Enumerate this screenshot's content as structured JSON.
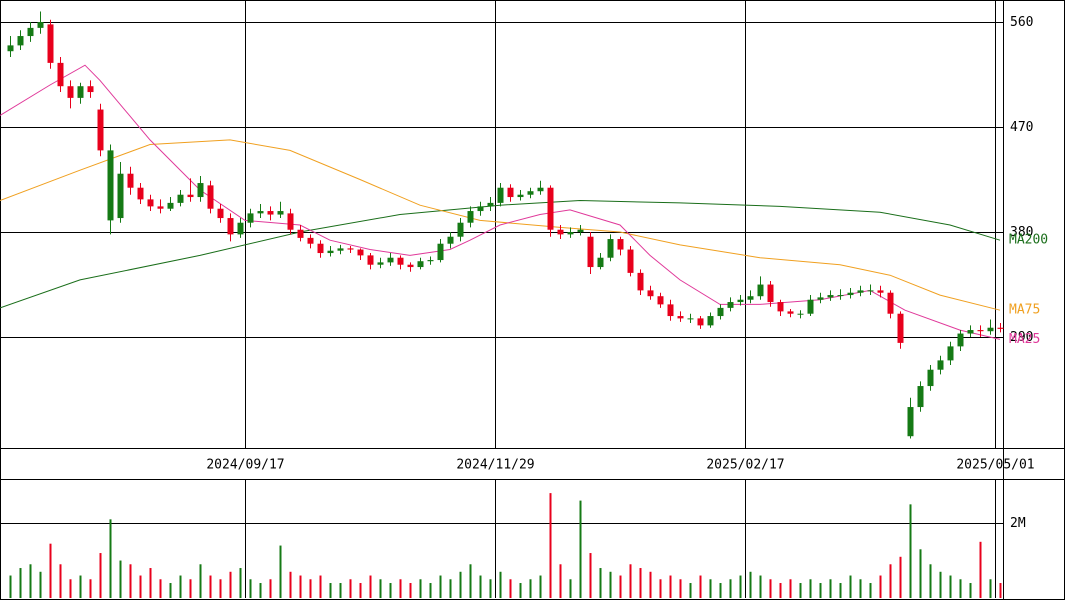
{
  "chart_data": {
    "type": "candlestick",
    "up_color": "#157a15",
    "down_color": "#e8001c",
    "xlim": [
      0,
      200.6
    ],
    "xticks": [
      {
        "value": 49,
        "label": "2024/09/17"
      },
      {
        "value": 99,
        "label": "2024/11/29"
      },
      {
        "value": 149,
        "label": "2025/02/17"
      },
      {
        "value": 199,
        "label": "2025/05/01"
      }
    ],
    "ylim": [
      194.9,
      578.9
    ],
    "yticks": [
      290,
      380,
      470,
      560
    ],
    "grid": true,
    "x": [
      2,
      4,
      6,
      8,
      10,
      12,
      14,
      16,
      18,
      20,
      22,
      24,
      26,
      28,
      30,
      32,
      34,
      36,
      38,
      40,
      42,
      44,
      46,
      48,
      50,
      52,
      54,
      56,
      58,
      60,
      62,
      64,
      66,
      68,
      70,
      72,
      74,
      76,
      78,
      80,
      82,
      84,
      86,
      88,
      90,
      92,
      94,
      96,
      98,
      100,
      102,
      104,
      106,
      108,
      110,
      112,
      114,
      116,
      118,
      120,
      122,
      124,
      126,
      128,
      130,
      132,
      134,
      136,
      138,
      140,
      142,
      144,
      146,
      148,
      150,
      152,
      154,
      156,
      158,
      160,
      162,
      164,
      166,
      168,
      170,
      172,
      174,
      176,
      178,
      180,
      182,
      184,
      186,
      188,
      190,
      192,
      194,
      196,
      198,
      200
    ],
    "ohlc": [
      [
        535,
        548,
        530,
        540
      ],
      [
        540,
        553,
        536,
        548
      ],
      [
        548,
        560,
        543,
        555
      ],
      [
        555,
        569,
        550,
        560
      ],
      [
        558,
        562,
        520,
        525
      ],
      [
        525,
        530,
        500,
        505
      ],
      [
        505,
        510,
        486,
        495
      ],
      [
        495,
        508,
        490,
        505
      ],
      [
        505,
        510,
        495,
        500
      ],
      [
        485,
        490,
        445,
        450
      ],
      [
        390,
        455,
        378,
        450
      ],
      [
        392,
        440,
        388,
        430
      ],
      [
        430,
        436,
        412,
        418
      ],
      [
        418,
        422,
        404,
        408
      ],
      [
        408,
        412,
        398,
        402
      ],
      [
        402,
        408,
        396,
        400
      ],
      [
        400,
        410,
        398,
        405
      ],
      [
        405,
        416,
        402,
        412
      ],
      [
        412,
        426,
        406,
        410
      ],
      [
        410,
        428,
        406,
        422
      ],
      [
        420,
        424,
        396,
        400
      ],
      [
        400,
        404,
        388,
        392
      ],
      [
        392,
        396,
        372,
        378
      ],
      [
        378,
        392,
        375,
        388
      ],
      [
        388,
        400,
        384,
        396
      ],
      [
        396,
        404,
        392,
        398
      ],
      [
        398,
        402,
        390,
        395
      ],
      [
        395,
        406,
        392,
        398
      ],
      [
        396,
        400,
        378,
        382
      ],
      [
        382,
        386,
        372,
        375
      ],
      [
        375,
        378,
        366,
        370
      ],
      [
        370,
        373,
        358,
        362
      ],
      [
        362,
        368,
        359,
        364
      ],
      [
        364,
        369,
        361,
        366
      ],
      [
        366,
        368,
        362,
        365
      ],
      [
        365,
        366,
        356,
        360
      ],
      [
        360,
        362,
        348,
        352
      ],
      [
        352,
        358,
        349,
        354
      ],
      [
        354,
        362,
        351,
        358
      ],
      [
        358,
        360,
        348,
        352
      ],
      [
        352,
        354,
        346,
        350
      ],
      [
        350,
        358,
        348,
        355
      ],
      [
        355,
        359,
        352,
        356
      ],
      [
        356,
        374,
        354,
        370
      ],
      [
        370,
        380,
        366,
        376
      ],
      [
        376,
        392,
        372,
        388
      ],
      [
        388,
        402,
        384,
        398
      ],
      [
        398,
        406,
        394,
        402
      ],
      [
        402,
        410,
        398,
        405
      ],
      [
        405,
        422,
        402,
        418
      ],
      [
        418,
        421,
        406,
        410
      ],
      [
        410,
        416,
        407,
        412
      ],
      [
        412,
        418,
        409,
        415
      ],
      [
        415,
        424,
        412,
        418
      ],
      [
        418,
        420,
        376,
        382
      ],
      [
        382,
        386,
        374,
        378
      ],
      [
        378,
        384,
        375,
        380
      ],
      [
        380,
        386,
        377,
        382
      ],
      [
        376,
        380,
        344,
        350
      ],
      [
        350,
        362,
        348,
        358
      ],
      [
        358,
        378,
        355,
        374
      ],
      [
        374,
        376,
        360,
        365
      ],
      [
        365,
        368,
        342,
        345
      ],
      [
        345,
        348,
        326,
        330
      ],
      [
        330,
        334,
        322,
        325
      ],
      [
        325,
        328,
        315,
        318
      ],
      [
        318,
        322,
        304,
        308
      ],
      [
        308,
        312,
        303,
        306
      ],
      [
        306,
        310,
        302,
        306
      ],
      [
        306,
        308,
        297,
        300
      ],
      [
        300,
        311,
        298,
        308
      ],
      [
        308,
        318,
        305,
        315
      ],
      [
        315,
        324,
        312,
        320
      ],
      [
        320,
        326,
        317,
        322
      ],
      [
        322,
        330,
        319,
        325
      ],
      [
        325,
        342,
        322,
        335
      ],
      [
        335,
        338,
        316,
        320
      ],
      [
        320,
        322,
        308,
        312
      ],
      [
        312,
        314,
        307,
        310
      ],
      [
        310,
        313,
        306,
        310
      ],
      [
        310,
        326,
        308,
        322
      ],
      [
        322,
        328,
        319,
        324
      ],
      [
        324,
        330,
        321,
        326
      ],
      [
        326,
        331,
        322,
        326
      ],
      [
        326,
        332,
        323,
        328
      ],
      [
        328,
        334,
        325,
        330
      ],
      [
        330,
        335,
        326,
        330
      ],
      [
        330,
        334,
        324,
        328
      ],
      [
        328,
        330,
        306,
        310
      ],
      [
        310,
        312,
        280,
        285
      ],
      [
        205,
        238,
        203,
        230
      ],
      [
        230,
        252,
        226,
        248
      ],
      [
        248,
        266,
        244,
        262
      ],
      [
        262,
        274,
        258,
        270
      ],
      [
        270,
        286,
        266,
        282
      ],
      [
        282,
        296,
        278,
        293
      ],
      [
        293,
        300,
        290,
        296
      ],
      [
        296,
        300,
        290,
        295
      ],
      [
        295,
        305,
        292,
        298
      ],
      [
        298,
        302,
        294,
        297
      ]
    ],
    "series": [
      {
        "name": "MA200",
        "color": "#1a6e1a",
        "x": [
          0,
          16,
          40,
          60,
          80,
          100,
          116,
          136,
          156,
          176,
          190,
          200
        ],
        "values": [
          315,
          339,
          360,
          380,
          395,
          403,
          407,
          405,
          402,
          397,
          386,
          373
        ]
      },
      {
        "name": "MA75",
        "color": "#f0a020",
        "x": [
          0,
          16,
          30,
          46,
          58,
          72,
          84,
          96,
          112,
          124,
          136,
          152,
          168,
          178,
          188,
          200
        ],
        "values": [
          407,
          433,
          455,
          459,
          450,
          425,
          403,
          390,
          384,
          380,
          369,
          358,
          352,
          343,
          326,
          313
        ]
      },
      {
        "name": "MA25",
        "color": "#e0399a",
        "x": [
          0,
          10,
          17,
          20,
          30,
          40,
          49,
          60,
          66,
          74,
          82,
          90,
          94,
          100,
          108,
          114,
          124,
          130,
          136,
          144,
          152,
          164,
          174,
          181,
          192,
          200
        ],
        "values": [
          480,
          506,
          523,
          510,
          459,
          416,
          390,
          386,
          373,
          365,
          360,
          365,
          373,
          386,
          395,
          399,
          386,
          360,
          339,
          318,
          318,
          322,
          330,
          313,
          296,
          288
        ]
      }
    ],
    "volume": {
      "ylim": [
        0,
        3.15
      ],
      "yticks": [
        {
          "value": 2,
          "label": "2M"
        }
      ],
      "values": [
        0.6,
        0.8,
        0.9,
        0.7,
        1.45,
        0.9,
        0.5,
        0.6,
        0.5,
        1.2,
        2.1,
        1.0,
        0.9,
        0.6,
        0.8,
        0.5,
        0.4,
        0.6,
        0.5,
        0.9,
        0.6,
        0.5,
        0.7,
        0.8,
        0.5,
        0.4,
        0.5,
        1.4,
        0.7,
        0.6,
        0.5,
        0.6,
        0.4,
        0.4,
        0.5,
        0.4,
        0.6,
        0.5,
        0.4,
        0.5,
        0.4,
        0.5,
        0.4,
        0.6,
        0.5,
        0.7,
        0.9,
        0.6,
        0.5,
        0.7,
        0.5,
        0.4,
        0.5,
        0.6,
        2.8,
        0.9,
        0.5,
        2.6,
        1.2,
        0.8,
        0.7,
        0.6,
        0.9,
        0.8,
        0.7,
        0.5,
        0.6,
        0.5,
        0.4,
        0.6,
        0.5,
        0.4,
        0.5,
        0.6,
        0.7,
        0.6,
        0.5,
        0.4,
        0.5,
        0.4,
        0.5,
        0.4,
        0.5,
        0.4,
        0.6,
        0.5,
        0.4,
        0.6,
        0.9,
        1.1,
        2.5,
        1.3,
        0.9,
        0.7,
        0.6,
        0.5,
        0.4,
        1.5,
        0.5,
        0.4
      ]
    }
  }
}
